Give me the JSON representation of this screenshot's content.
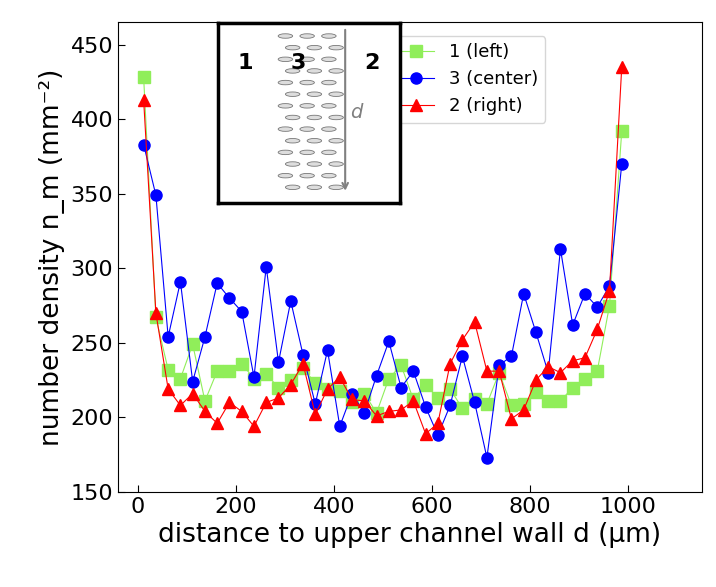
{
  "chart_data": {
    "type": "line",
    "x_label": "distance to upper channel wall d (µm)",
    "y_label": "number density n_m (mm⁻²)",
    "x": [
      12,
      37,
      62,
      87,
      112,
      137,
      162,
      187,
      212,
      237,
      262,
      287,
      312,
      337,
      362,
      387,
      412,
      437,
      462,
      487,
      512,
      537,
      562,
      587,
      612,
      637,
      662,
      687,
      712,
      737,
      762,
      787,
      812,
      837,
      862,
      887,
      912,
      937,
      962,
      987
    ],
    "series": [
      {
        "name": "1 (left)",
        "color": "#90ee5a",
        "marker": "square",
        "values": [
          428,
          267,
          232,
          226,
          249,
          211,
          231,
          231,
          236,
          226,
          229,
          220,
          225,
          233,
          223,
          219,
          218,
          210,
          216,
          203,
          226,
          235,
          212,
          222,
          213,
          219,
          206,
          212,
          209,
          230,
          208,
          209,
          217,
          211,
          211,
          220,
          226,
          231,
          275,
          392
        ]
      },
      {
        "name": "3 (center)",
        "color": "#0000ff",
        "marker": "circle",
        "values": [
          383,
          349,
          254,
          291,
          224,
          254,
          290,
          280,
          271,
          227,
          301,
          237,
          278,
          242,
          209,
          245,
          194,
          216,
          203,
          228,
          251,
          220,
          231,
          207,
          188,
          208,
          241,
          210,
          173,
          235,
          241,
          283,
          257,
          230,
          313,
          262,
          283,
          274,
          288,
          370
        ]
      },
      {
        "name": "2 (right)",
        "color": "#ff0000",
        "marker": "triangle",
        "values": [
          413,
          270,
          219,
          208,
          216,
          204,
          196,
          210,
          204,
          194,
          210,
          213,
          222,
          236,
          202,
          219,
          227,
          212,
          211,
          201,
          204,
          205,
          211,
          189,
          196,
          236,
          252,
          264,
          231,
          231,
          199,
          205,
          225,
          234,
          230,
          238,
          240,
          259,
          285,
          435
        ]
      }
    ],
    "xlim": [
      -40,
      1150
    ],
    "xticks": [
      0,
      200,
      400,
      600,
      800,
      1000
    ],
    "ylim": [
      150,
      465
    ],
    "yticks": [
      150,
      200,
      250,
      300,
      350,
      400,
      450
    ],
    "legend": "upper center",
    "inset": {
      "region_labels": [
        "1",
        "3",
        "2"
      ],
      "arrow_label": "d"
    }
  }
}
